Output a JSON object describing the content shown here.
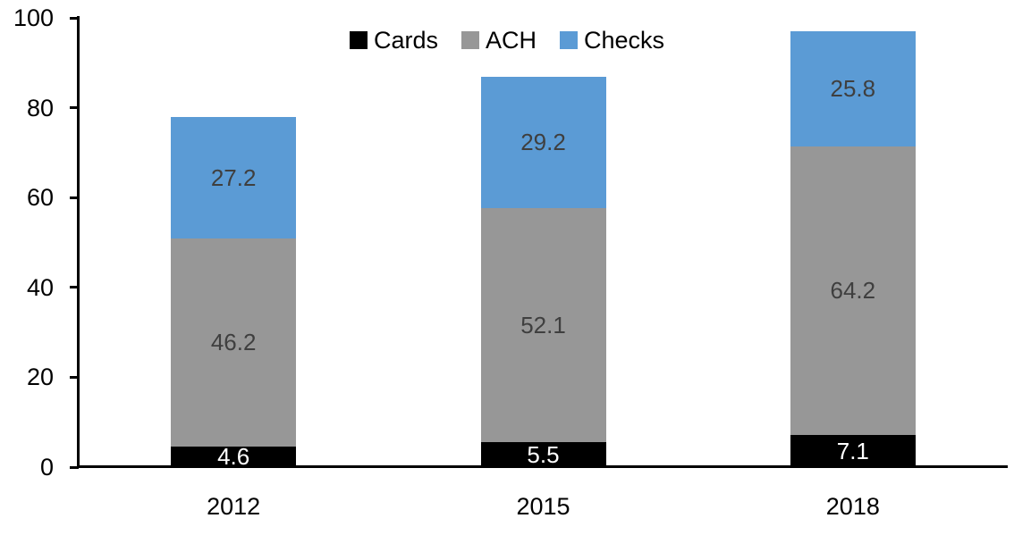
{
  "chart_data": {
    "type": "bar",
    "stacked": true,
    "title": "",
    "xlabel": "",
    "ylabel": "",
    "categories": [
      "2012",
      "2015",
      "2018"
    ],
    "series": [
      {
        "name": "Cards",
        "color": "#000000",
        "label_color": "#ffffff",
        "values": [
          4.6,
          5.5,
          7.1
        ]
      },
      {
        "name": "ACH",
        "color": "#979797",
        "label_color": "#3f3f3f",
        "values": [
          46.2,
          52.1,
          64.2
        ]
      },
      {
        "name": "Checks",
        "color": "#5b9bd5",
        "label_color": "#3f3f3f",
        "values": [
          27.2,
          29.2,
          25.8
        ]
      }
    ],
    "totals": [
      78.0,
      86.8,
      97.1
    ],
    "ylim": [
      0,
      100
    ],
    "yticks": [
      0,
      20,
      40,
      60,
      80,
      100
    ],
    "grid": false,
    "legend_position": "top-center",
    "legend_labels": [
      "Cards",
      "ACH",
      "Checks"
    ]
  },
  "colors": {
    "axis": "#000000",
    "background": "#ffffff"
  }
}
